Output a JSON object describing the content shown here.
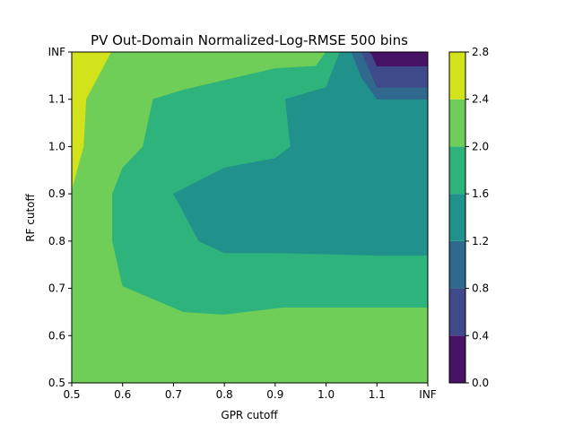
{
  "chart_data": {
    "type": "contour",
    "title": "PV Out-Domain Normalized-Log-RMSE 500 bins",
    "xlabel": "GPR cutoff",
    "ylabel": "RF cutoff",
    "x_ticks": [
      "0.5",
      "0.6",
      "0.7",
      "0.8",
      "0.9",
      "1.0",
      "1.1",
      "INF"
    ],
    "y_ticks": [
      "0.5",
      "0.6",
      "0.7",
      "0.8",
      "0.9",
      "1.0",
      "1.1",
      "INF"
    ],
    "xlim": [
      0.5,
      1.2
    ],
    "ylim": [
      0.5,
      1.2
    ],
    "colorbar": {
      "levels": [
        0.0,
        0.4,
        0.8,
        1.2,
        1.6,
        2.0,
        2.4,
        2.8
      ],
      "tick_labels": [
        "0.0",
        "0.4",
        "0.8",
        "1.2",
        "1.6",
        "2.0",
        "2.4",
        "2.8"
      ],
      "colors": [
        "#471365",
        "#3e4a89",
        "#30698e",
        "#21918c",
        "#2eb37c",
        "#6ece58",
        "#d2e21b"
      ]
    },
    "regions": [
      {
        "band": "2.0–2.4",
        "color": "#6ece58",
        "polygon": [
          [
            0.5,
            0.5
          ],
          [
            1.2,
            0.5
          ],
          [
            1.2,
            1.2
          ],
          [
            0.5,
            1.2
          ]
        ]
      },
      {
        "band": "2.4–2.8",
        "color": "#d2e21b",
        "polygon": [
          [
            0.5,
            1.2
          ],
          [
            0.577,
            1.2
          ],
          [
            0.528,
            1.1
          ],
          [
            0.523,
            1.0
          ],
          [
            0.5,
            0.91
          ]
        ]
      },
      {
        "band": "1.6–2.0",
        "color": "#2eb37c",
        "polygon": [
          [
            1.2,
            0.66
          ],
          [
            0.915,
            0.66
          ],
          [
            0.8,
            0.645
          ],
          [
            0.72,
            0.65
          ],
          [
            0.6,
            0.705
          ],
          [
            0.58,
            0.8
          ],
          [
            0.58,
            0.9
          ],
          [
            0.6,
            0.955
          ],
          [
            0.64,
            1.0
          ],
          [
            0.66,
            1.1
          ],
          [
            0.72,
            1.12
          ],
          [
            0.8,
            1.14
          ],
          [
            0.9,
            1.165
          ],
          [
            0.98,
            1.17
          ],
          [
            1.0,
            1.2
          ],
          [
            1.2,
            1.2
          ]
        ]
      },
      {
        "band": "1.2–1.6",
        "color": "#21918c",
        "polygon": [
          [
            1.2,
            0.77
          ],
          [
            1.1,
            0.77
          ],
          [
            0.9,
            0.775
          ],
          [
            0.8,
            0.775
          ],
          [
            0.75,
            0.8
          ],
          [
            0.7,
            0.9
          ],
          [
            0.8,
            0.955
          ],
          [
            0.9,
            0.975
          ],
          [
            0.93,
            1.0
          ],
          [
            0.92,
            1.1
          ],
          [
            1.0,
            1.125
          ],
          [
            1.027,
            1.2
          ],
          [
            1.2,
            1.2
          ]
        ]
      },
      {
        "band": "0.8–1.2",
        "color": "#30698e",
        "polygon": [
          [
            1.2,
            1.1
          ],
          [
            1.1,
            1.1
          ],
          [
            1.07,
            1.145
          ],
          [
            1.05,
            1.2
          ],
          [
            1.2,
            1.2
          ]
        ]
      },
      {
        "band": "0.4–0.8",
        "color": "#3e4a89",
        "polygon": [
          [
            1.2,
            1.125
          ],
          [
            1.1,
            1.125
          ],
          [
            1.09,
            1.15
          ],
          [
            1.07,
            1.2
          ],
          [
            1.2,
            1.2
          ]
        ]
      },
      {
        "band": "0.0–0.4",
        "color": "#471365",
        "polygon": [
          [
            1.2,
            1.17
          ],
          [
            1.1,
            1.17
          ],
          [
            1.09,
            1.195
          ],
          [
            1.085,
            1.2
          ],
          [
            1.2,
            1.2
          ]
        ]
      }
    ]
  }
}
